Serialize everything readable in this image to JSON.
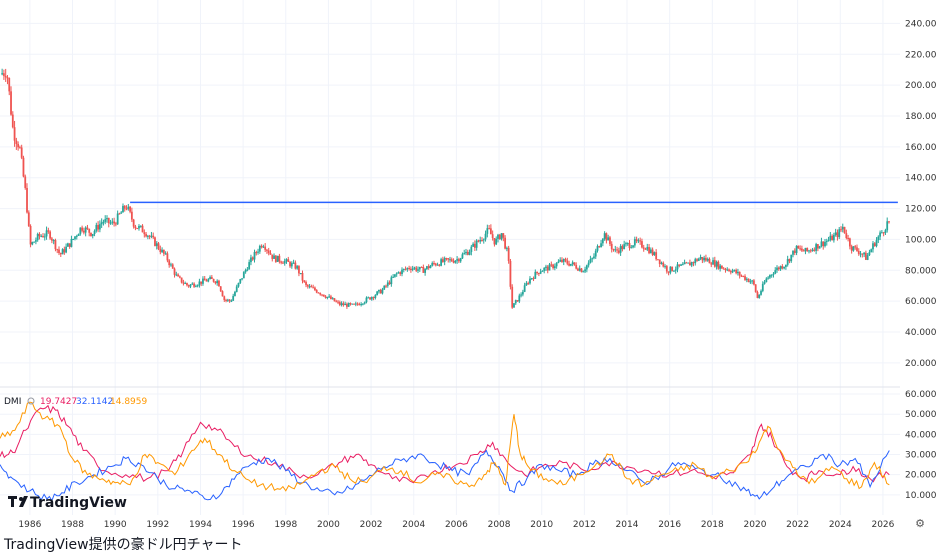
{
  "chart_data": [
    {
      "type": "candlestick",
      "title": "",
      "y_ticks": [
        "240.000",
        "220.000",
        "200.000",
        "180.000",
        "160.000",
        "140.000",
        "120.000",
        "100.000",
        "80.000",
        "60.000",
        "40.000",
        "20.000"
      ],
      "ylim": [
        5,
        250
      ],
      "x_ticks": [
        "1986",
        "1988",
        "1990",
        "1992",
        "1994",
        "1996",
        "1998",
        "2000",
        "2002",
        "2004",
        "2006",
        "2008",
        "2010",
        "2012",
        "2014",
        "2016",
        "2018",
        "2020",
        "2022",
        "2024",
        "2026"
      ],
      "xlim": [
        1984.6,
        2026.8
      ],
      "colors": {
        "up": "#26a69a",
        "down": "#ef5350",
        "level_line": "#2962ff"
      },
      "level_line": {
        "value": 124,
        "from": 1990.7,
        "to": 2026.7
      },
      "price_path": [
        [
          1984.7,
          207
        ],
        [
          1985.0,
          210
        ],
        [
          1985.3,
          170
        ],
        [
          1985.6,
          160
        ],
        [
          1985.9,
          128
        ],
        [
          1986.1,
          96
        ],
        [
          1986.5,
          102
        ],
        [
          1987.0,
          104
        ],
        [
          1987.5,
          90
        ],
        [
          1988.0,
          98
        ],
        [
          1988.5,
          108
        ],
        [
          1989.0,
          104
        ],
        [
          1989.5,
          112
        ],
        [
          1990.0,
          110
        ],
        [
          1990.6,
          122
        ],
        [
          1991.0,
          109
        ],
        [
          1991.5,
          105
        ],
        [
          1992.0,
          97
        ],
        [
          1992.5,
          88
        ],
        [
          1993.0,
          75
        ],
        [
          1993.5,
          70
        ],
        [
          1994.0,
          72
        ],
        [
          1994.5,
          74
        ],
        [
          1994.9,
          73
        ],
        [
          1995.2,
          61
        ],
        [
          1995.5,
          60
        ],
        [
          1995.9,
          72
        ],
        [
          1996.3,
          83
        ],
        [
          1996.8,
          94
        ],
        [
          1997.0,
          98
        ],
        [
          1997.5,
          88
        ],
        [
          1998.0,
          86
        ],
        [
          1998.6,
          82
        ],
        [
          1999.0,
          70
        ],
        [
          1999.5,
          67
        ],
        [
          2000.0,
          63
        ],
        [
          2000.6,
          58
        ],
        [
          2001.3,
          57
        ],
        [
          2002.0,
          62
        ],
        [
          2002.6,
          67
        ],
        [
          2003.3,
          78
        ],
        [
          2003.9,
          82
        ],
        [
          2004.5,
          80
        ],
        [
          2005.0,
          84
        ],
        [
          2005.6,
          86
        ],
        [
          2006.1,
          87
        ],
        [
          2006.7,
          93
        ],
        [
          2007.2,
          100
        ],
        [
          2007.6,
          106
        ],
        [
          2007.9,
          98
        ],
        [
          2008.2,
          104
        ],
        [
          2008.5,
          90
        ],
        [
          2008.7,
          56
        ],
        [
          2009.0,
          62
        ],
        [
          2009.5,
          74
        ],
        [
          2010.0,
          80
        ],
        [
          2010.5,
          82
        ],
        [
          2011.0,
          86
        ],
        [
          2011.5,
          84
        ],
        [
          2012.0,
          80
        ],
        [
          2012.5,
          88
        ],
        [
          2013.0,
          104
        ],
        [
          2013.5,
          92
        ],
        [
          2014.0,
          96
        ],
        [
          2014.5,
          98
        ],
        [
          2015.0,
          95
        ],
        [
          2015.5,
          88
        ],
        [
          2016.0,
          80
        ],
        [
          2016.5,
          82
        ],
        [
          2017.0,
          84
        ],
        [
          2017.5,
          88
        ],
        [
          2018.0,
          86
        ],
        [
          2018.5,
          82
        ],
        [
          2019.0,
          80
        ],
        [
          2019.5,
          76
        ],
        [
          2020.0,
          72
        ],
        [
          2020.2,
          62
        ],
        [
          2020.6,
          74
        ],
        [
          2021.0,
          80
        ],
        [
          2021.5,
          84
        ],
        [
          2022.0,
          94
        ],
        [
          2022.5,
          92
        ],
        [
          2023.0,
          96
        ],
        [
          2023.6,
          100
        ],
        [
          2024.0,
          104
        ],
        [
          2024.2,
          108
        ],
        [
          2024.6,
          95
        ],
        [
          2025.0,
          92
        ],
        [
          2025.3,
          88
        ],
        [
          2025.7,
          98
        ],
        [
          2026.1,
          106
        ],
        [
          2026.3,
          111
        ]
      ]
    },
    {
      "type": "line",
      "title": "",
      "indicator_label": "DMI",
      "y_ticks": [
        "60.0000",
        "50.0000",
        "40.0000",
        "30.0000",
        "20.0000",
        "10.0000"
      ],
      "ylim": [
        0,
        62
      ],
      "legend_values": [
        "19.7427",
        "32.1142",
        "14.8959"
      ],
      "series": [
        {
          "color": "#e91e63",
          "x": [
            1984.6,
            1985.2,
            1985.8,
            1986.5,
            1987.2,
            1987.8,
            1988.5,
            1989.5,
            1990.5,
            1991.5,
            1992.5,
            1993.2,
            1994.0,
            1994.8,
            1995.6,
            1996.5,
            1997.5,
            1998.5,
            1999.5,
            2000.5,
            2001.3,
            2002.0,
            2003.0,
            2004.0,
            2005.0,
            2006.0,
            2007.0,
            2007.7,
            2008.4,
            2009.2,
            2010.0,
            2011.0,
            2012.0,
            2013.0,
            2014.0,
            2015.0,
            2016.0,
            2017.0,
            2018.0,
            2019.0,
            2019.8,
            2020.3,
            2020.8,
            2021.5,
            2022.3,
            2023.0,
            2024.0,
            2024.6,
            2025.4,
            2026.3
          ],
          "y": [
            29,
            31,
            42,
            53,
            52,
            44,
            32,
            22,
            20,
            18,
            22,
            32,
            46,
            42,
            34,
            28,
            26,
            20,
            20,
            26,
            30,
            25,
            18,
            16,
            22,
            25,
            30,
            36,
            26,
            20,
            24,
            26,
            22,
            26,
            24,
            22,
            20,
            22,
            19,
            21,
            30,
            45,
            38,
            24,
            18,
            22,
            20,
            24,
            18,
            20
          ]
        },
        {
          "color": "#2962ff",
          "x": [
            1984.6,
            1985.2,
            1986.0,
            1986.8,
            1987.5,
            1988.2,
            1989.0,
            1989.8,
            1990.5,
            1991.2,
            1992.0,
            1992.8,
            1993.5,
            1994.2,
            1995.0,
            1995.7,
            1996.5,
            1997.2,
            1998.0,
            1998.8,
            1999.6,
            2000.3,
            2001.0,
            2001.8,
            2002.6,
            2003.4,
            2004.2,
            2005.0,
            2005.8,
            2006.6,
            2007.4,
            2008.0,
            2008.6,
            2009.3,
            2010.0,
            2010.8,
            2011.6,
            2012.4,
            2013.2,
            2014.0,
            2014.8,
            2015.6,
            2016.4,
            2017.2,
            2018.0,
            2018.8,
            2019.6,
            2020.2,
            2020.9,
            2021.6,
            2022.4,
            2023.2,
            2024.0,
            2024.7,
            2025.4,
            2026.3
          ],
          "y": [
            25,
            18,
            12,
            8,
            11,
            16,
            20,
            24,
            28,
            25,
            18,
            13,
            12,
            8,
            11,
            20,
            26,
            28,
            22,
            16,
            12,
            10,
            13,
            18,
            24,
            27,
            30,
            26,
            22,
            20,
            32,
            24,
            12,
            18,
            25,
            22,
            20,
            25,
            28,
            22,
            16,
            20,
            26,
            23,
            20,
            17,
            12,
            8,
            14,
            20,
            24,
            30,
            25,
            28,
            14,
            32
          ]
        },
        {
          "color": "#ff9800",
          "x": [
            1984.6,
            1985.3,
            1986.0,
            1986.7,
            1987.4,
            1988.0,
            1988.7,
            1989.4,
            1990.0,
            1990.7,
            1991.4,
            1992.0,
            1992.8,
            1993.6,
            1994.2,
            1994.9,
            1995.6,
            1996.4,
            1997.2,
            1998.0,
            1998.8,
            1999.6,
            2000.3,
            2001.0,
            2001.8,
            2002.6,
            2003.4,
            2004.2,
            2005.0,
            2005.8,
            2006.6,
            2007.3,
            2007.8,
            2008.3,
            2008.7,
            2009.0,
            2009.5,
            2010.2,
            2011.0,
            2011.8,
            2012.6,
            2013.3,
            2014.0,
            2014.8,
            2015.6,
            2016.4,
            2017.2,
            2018.0,
            2018.8,
            2019.6,
            2020.2,
            2020.6,
            2021.3,
            2022.0,
            2022.8,
            2023.6,
            2024.3,
            2025.0,
            2025.6,
            2026.3
          ],
          "y": [
            38,
            42,
            56,
            48,
            44,
            28,
            20,
            18,
            16,
            15,
            30,
            26,
            20,
            32,
            38,
            30,
            22,
            16,
            14,
            12,
            16,
            22,
            24,
            18,
            16,
            24,
            22,
            16,
            20,
            18,
            14,
            20,
            26,
            15,
            50,
            30,
            22,
            18,
            15,
            20,
            26,
            30,
            18,
            15,
            20,
            22,
            25,
            18,
            22,
            26,
            36,
            44,
            30,
            20,
            16,
            24,
            18,
            14,
            26,
            15
          ]
        }
      ]
    }
  ],
  "logo": {
    "text": "TradingView"
  },
  "caption": "TradingView提供の豪ドル円チャート"
}
